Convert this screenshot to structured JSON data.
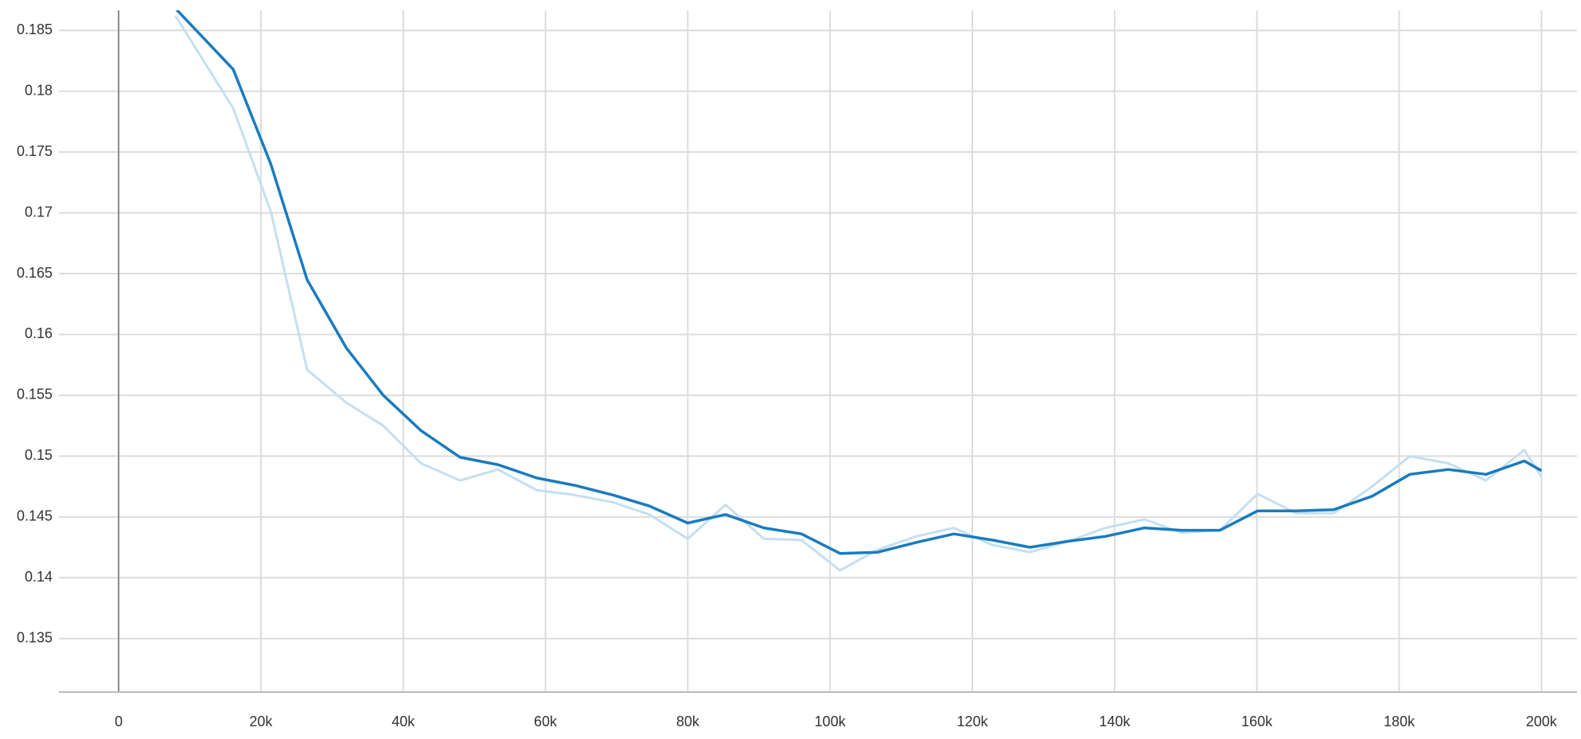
{
  "chart_data": {
    "type": "line",
    "x": [
      8000,
      16100,
      21400,
      26500,
      32000,
      37200,
      42500,
      48000,
      53300,
      58800,
      64100,
      69500,
      74600,
      80000,
      85300,
      90700,
      96000,
      101400,
      106700,
      112100,
      117400,
      122800,
      128100,
      133500,
      138700,
      144200,
      149400,
      154800,
      160100,
      165500,
      170800,
      176200,
      181500,
      186900,
      192200,
      197600,
      200000
    ],
    "series": [
      {
        "color": "#c5dff0",
        "values": [
          0.1862,
          0.1786,
          0.1701,
          0.1571,
          0.1544,
          0.1525,
          0.1494,
          0.148,
          0.1489,
          0.1472,
          0.1468,
          0.1462,
          0.1452,
          0.1432,
          0.146,
          0.1432,
          0.1431,
          0.1406,
          0.1423,
          0.1434,
          0.1441,
          0.1427,
          0.1421,
          0.143,
          0.1441,
          0.1448,
          0.1437,
          0.1439,
          0.1469,
          0.1453,
          0.1453,
          0.1475,
          0.15,
          0.1494,
          0.148,
          0.1505,
          0.1483
        ]
      },
      {
        "color": "#1a7bbf",
        "values": [
          0.1868,
          0.1818,
          0.174,
          0.1645,
          0.1589,
          0.155,
          0.1521,
          0.1499,
          0.1493,
          0.1482,
          0.1476,
          0.1468,
          0.1459,
          0.1445,
          0.1452,
          0.1441,
          0.1436,
          0.142,
          0.1421,
          0.1429,
          0.1436,
          0.1431,
          0.1425,
          0.143,
          0.1434,
          0.1441,
          0.1439,
          0.1439,
          0.1455,
          0.1455,
          0.1456,
          0.1467,
          0.1485,
          0.1489,
          0.1485,
          0.1496,
          0.1488
        ]
      }
    ],
    "xlim": [
      -8400,
      205000
    ],
    "xticks": [
      0,
      {
        "value": 20000,
        "label": "20k"
      },
      {
        "value": 40000,
        "label": "40k"
      },
      {
        "value": 60000,
        "label": "60k"
      },
      {
        "value": 80000,
        "label": "80k"
      },
      {
        "value": 100000,
        "label": "100k"
      },
      {
        "value": 120000,
        "label": "120k"
      },
      {
        "value": 140000,
        "label": "140k"
      },
      {
        "value": 160000,
        "label": "160k"
      },
      {
        "value": 180000,
        "label": "180k"
      },
      {
        "value": 200000,
        "label": "200k"
      }
    ],
    "ylim": [
      0.1306,
      0.18665
    ],
    "yticks": [
      0.135,
      0.14,
      0.145,
      0.15,
      0.155,
      0.16,
      0.165,
      0.17,
      0.175,
      0.18,
      0.185
    ],
    "grid": true
  }
}
